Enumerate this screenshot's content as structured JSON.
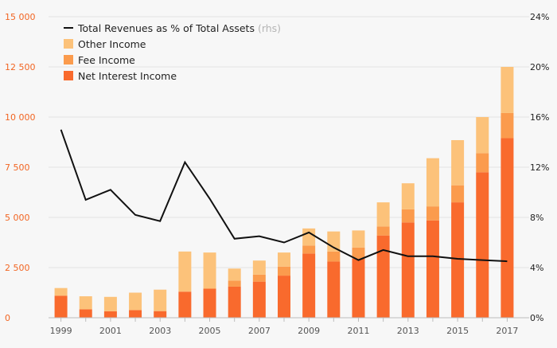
{
  "chart_data": {
    "type": "bar",
    "stacked": true,
    "categories": [
      "1999",
      "2000",
      "2001",
      "2002",
      "2003",
      "2004",
      "2005",
      "2006",
      "2007",
      "2008",
      "2009",
      "2010",
      "2011",
      "2012",
      "2013",
      "2014",
      "2015",
      "2016",
      "2017"
    ],
    "x_tick_labels": [
      "1999",
      "2001",
      "2003",
      "2005",
      "2007",
      "2009",
      "2011",
      "2013",
      "2015",
      "2017"
    ],
    "y_left": {
      "ticks": [
        0,
        2500,
        5000,
        7500,
        10000,
        12500,
        15000
      ],
      "tick_labels": [
        "0",
        "2 500",
        "5 000",
        "7 500",
        "10 000",
        "12 500",
        "15 000"
      ],
      "ylim": [
        0,
        15000
      ]
    },
    "y_right": {
      "ticks": [
        0,
        4,
        8,
        12,
        16,
        20,
        24
      ],
      "tick_labels": [
        "0%",
        "4%",
        "8%",
        "12%",
        "16%",
        "20%",
        "24%"
      ],
      "ylim": [
        0,
        24
      ]
    },
    "series": [
      {
        "name": "Net Interest Income",
        "color": "#f96a2d",
        "values": [
          1100,
          420,
          320,
          380,
          330,
          1300,
          1450,
          1550,
          1800,
          2100,
          3200,
          2800,
          2950,
          4100,
          4750,
          4850,
          5750,
          7250,
          8950
        ]
      },
      {
        "name": "Fee Income",
        "color": "#fb9b4d",
        "values": [
          0,
          0,
          0,
          0,
          0,
          0,
          0,
          300,
          350,
          450,
          400,
          500,
          550,
          450,
          650,
          700,
          850,
          950,
          1250
        ]
      },
      {
        "name": "Other Income",
        "color": "#fcc27a",
        "values": [
          380,
          650,
          720,
          870,
          1070,
          2000,
          1800,
          600,
          700,
          700,
          850,
          1000,
          850,
          1200,
          1300,
          2400,
          2250,
          1800,
          2300
        ]
      }
    ],
    "line_series": {
      "name": "Total Revenues as % of Total Assets",
      "suffix": "(rhs)",
      "axis": "right",
      "color": "#111111",
      "values": [
        15.0,
        9.4,
        10.2,
        8.2,
        7.7,
        12.4,
        9.5,
        6.3,
        6.5,
        6.0,
        6.8,
        5.6,
        4.6,
        5.4,
        4.9,
        4.9,
        4.7,
        4.6,
        4.5
      ]
    },
    "legend": {
      "placement": "top-left",
      "items": [
        {
          "label": "Total Revenues as % of Total Assets",
          "suffix": "(rhs)",
          "kind": "line",
          "color": "#111111"
        },
        {
          "label": "Other Income",
          "kind": "box",
          "color": "#fcc27a"
        },
        {
          "label": "Fee Income",
          "kind": "box",
          "color": "#fb9b4d"
        },
        {
          "label": "Net Interest Income",
          "kind": "box",
          "color": "#f96a2d"
        }
      ]
    },
    "colors": {
      "left_axis_text": "#f26522",
      "right_axis_text": "#222222",
      "x_axis_text": "#555555",
      "grid": "#e3e3e3",
      "legend_muted": "#b5b5b5"
    }
  }
}
